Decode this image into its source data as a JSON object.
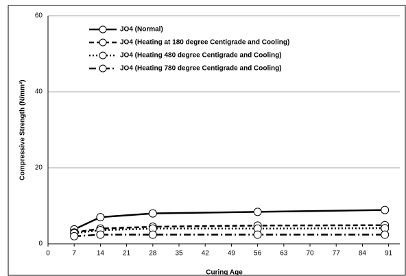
{
  "chart_data": {
    "type": "line",
    "y_label": "Compressive Strength (N/mm²)",
    "x_label": "Curing Age",
    "x": [
      7,
      14,
      28,
      56,
      90
    ],
    "series": [
      {
        "name": "JO4 (Normal)",
        "color": "#000000",
        "dash": "solid",
        "values": [
          3.8,
          7,
          8,
          8.4,
          8.9
        ]
      },
      {
        "name": "JO4 (Heating at 180 degree Centigrade and Cooling)",
        "color": "#000000",
        "dash": "dashed",
        "values": [
          3,
          4,
          4.5,
          4.8,
          4.9
        ]
      },
      {
        "name": "JO4 (Heating 480 degree Centigrade and Cooling)",
        "color": "#000000",
        "dash": "dotted",
        "values": [
          2.8,
          3.6,
          4,
          4,
          4.1
        ]
      },
      {
        "name": "JO4 (Heating 780 degree Centigrade and Cooling)",
        "color": "#000000",
        "dash": "dashdot",
        "values": [
          2,
          2.4,
          2.4,
          2.4,
          2.4
        ]
      }
    ],
    "xlim": [
      0,
      94
    ],
    "xticks": [
      0,
      7,
      14,
      21,
      28,
      35,
      42,
      49,
      56,
      63,
      70,
      77,
      84,
      91
    ],
    "ylim": [
      0,
      60
    ],
    "yticks": [
      0,
      20,
      40,
      60
    ],
    "grid": true,
    "legend": "upper left"
  }
}
